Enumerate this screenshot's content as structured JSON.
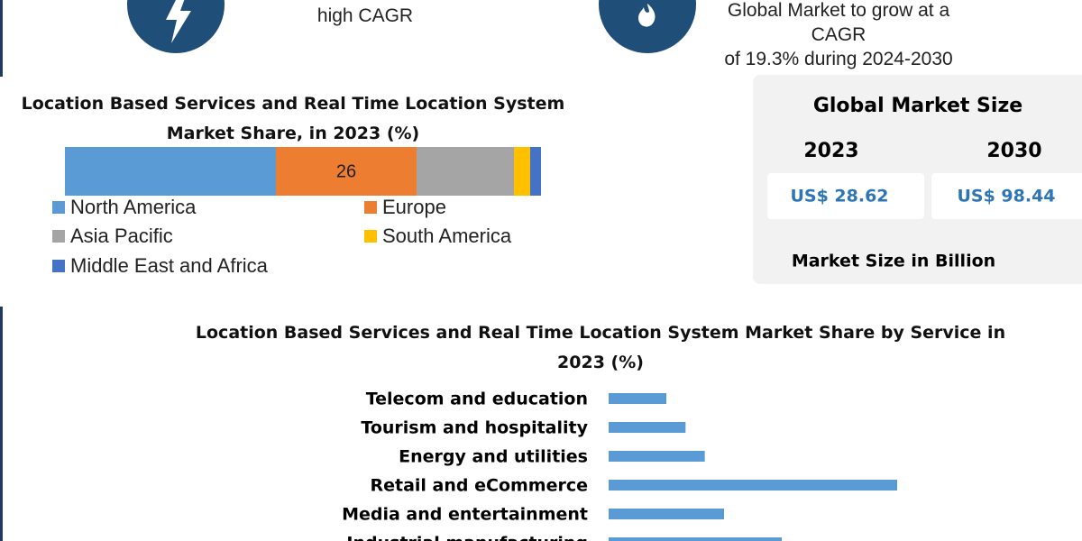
{
  "header": {
    "left_text": "high CAGR",
    "right_text": [
      "Global Market to grow at a CAGR",
      "of 19.3% during 2024-2030"
    ]
  },
  "market_size": {
    "title": "Global Market Size",
    "years": [
      "2023",
      "2030"
    ],
    "values": [
      "US$ 28.62",
      "US$ 98.44"
    ],
    "note": "Market Size in Billion"
  },
  "chart_data": [
    {
      "type": "stacked_bar",
      "orientation": "horizontal",
      "title": "Location Based Services and Real Time Location System Market Share, in 2023 (%)",
      "series": [
        {
          "name": "North America",
          "color": "#5b9bd5",
          "values": [
            39
          ]
        },
        {
          "name": "Europe",
          "color": "#ed7d31",
          "values": [
            26
          ],
          "value_labels": [
            "26"
          ]
        },
        {
          "name": "Asia Pacific",
          "color": "#a5a5a5",
          "values": [
            18
          ]
        },
        {
          "name": "South America",
          "color": "#ffc000",
          "values": [
            3
          ]
        },
        {
          "name": "Middle East and Africa",
          "color": "#4472c4",
          "values": [
            2
          ]
        }
      ]
    },
    {
      "type": "hbar",
      "title": "Location Based Services and Real Time Location System Market Share by Service in 2023 (%)",
      "categories": [
        "Telecom and education",
        "Tourism and hospitality",
        "Energy and utilities",
        "Retail and eCommerce",
        "Media and entertainment",
        "Industrial manufacturing"
      ],
      "values": [
        3,
        4,
        5,
        15,
        6,
        9
      ],
      "color": "#5b9bd5"
    }
  ]
}
